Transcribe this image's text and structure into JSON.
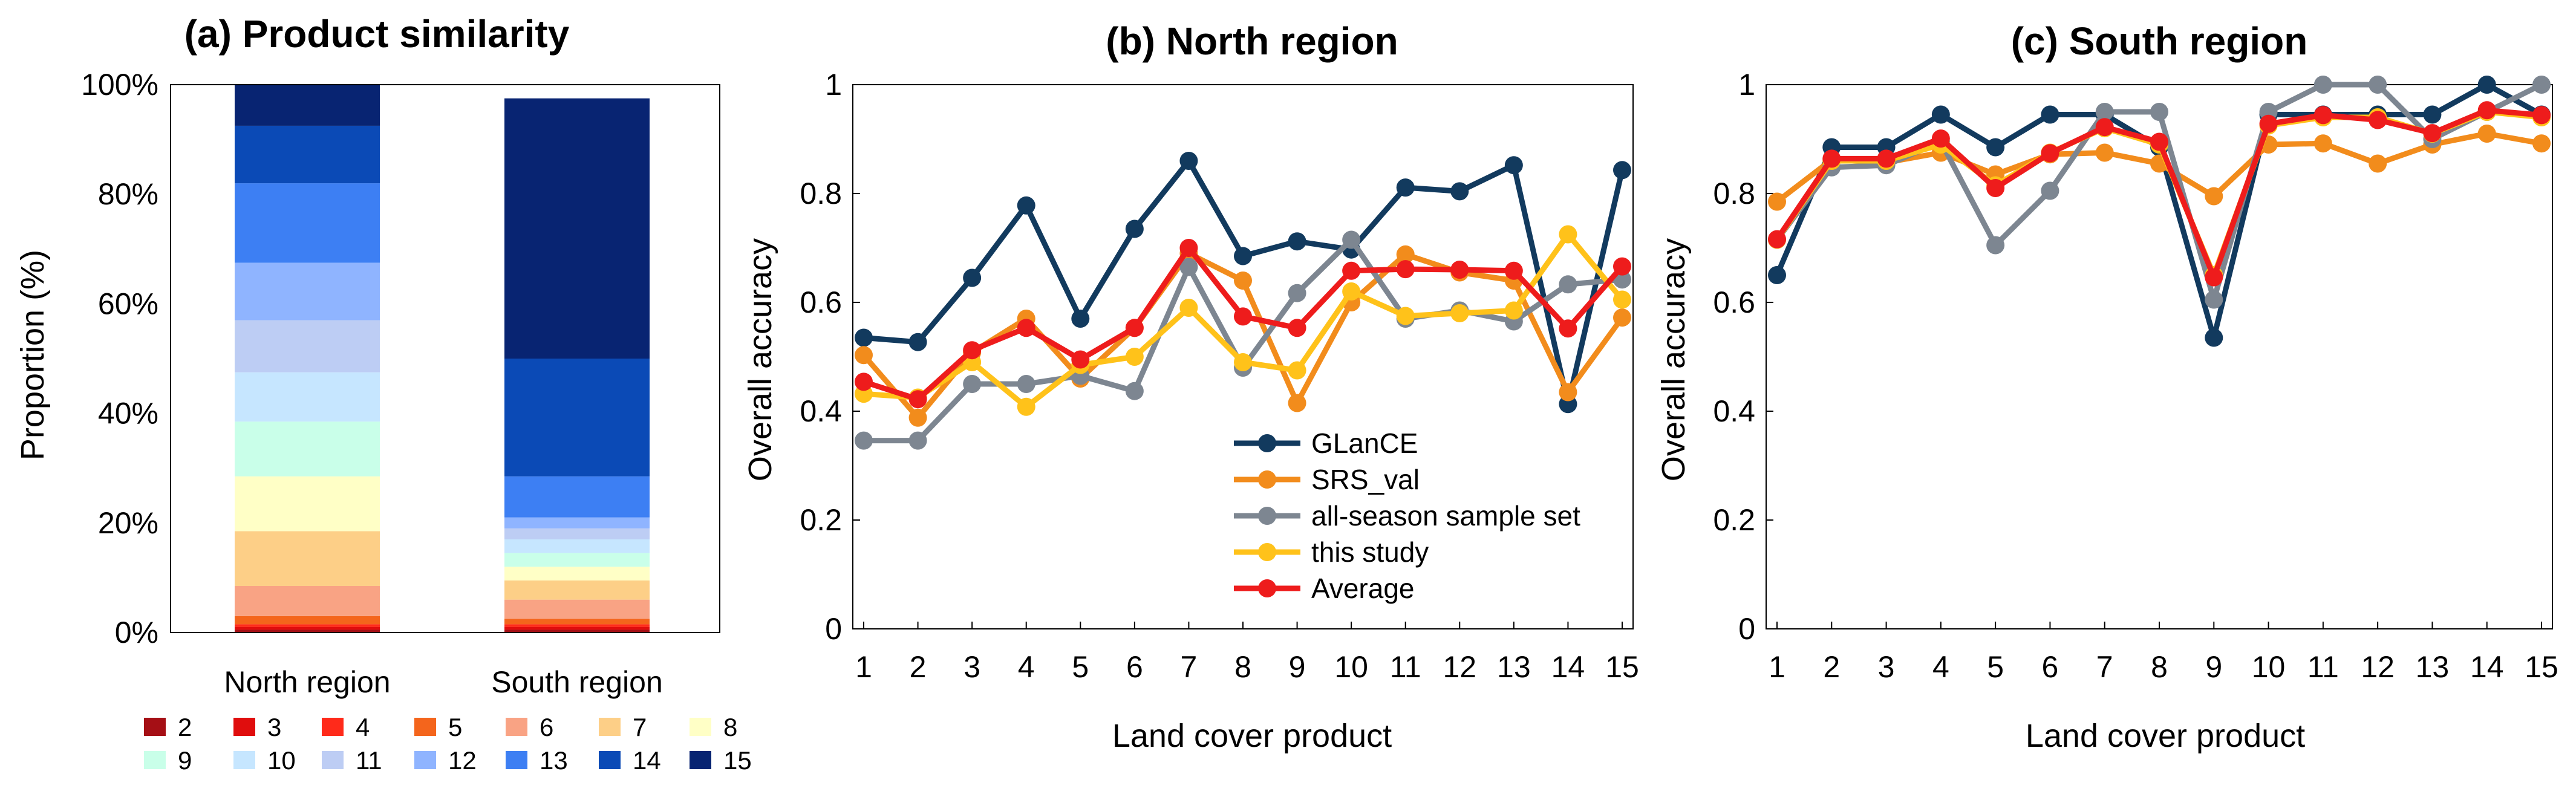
{
  "panels": {
    "a": {
      "title": "(a) Product similarity",
      "ylabel": "Proportion (%)",
      "yticks": [
        "0%",
        "20%",
        "40%",
        "60%",
        "80%",
        "100%"
      ],
      "categories": [
        "North region",
        "South region"
      ],
      "classes": [
        "2",
        "3",
        "4",
        "5",
        "6",
        "7",
        "8",
        "9",
        "10",
        "11",
        "12",
        "13",
        "14",
        "15"
      ],
      "class_colors": [
        "#a50f15",
        "#e00d0d",
        "#ff2a1a",
        "#f4651c",
        "#f9a384",
        "#fdcf87",
        "#ffffc6",
        "#c9ffe9",
        "#c6e6ff",
        "#bdcdf4",
        "#8fb4ff",
        "#3d7ff3",
        "#0b4ab6",
        "#082472"
      ]
    },
    "b": {
      "title": "(b) North region",
      "xlabel": "Land cover product",
      "ylabel": "Overall accuracy"
    },
    "c": {
      "title": "(c) South region",
      "xlabel": "Land cover product",
      "ylabel": "Overall accuracy"
    },
    "legend": {
      "entries": [
        "GLanCE",
        "SRS_val",
        "all-season sample set",
        "this study",
        "Average"
      ],
      "colors": [
        "#123a5e",
        "#f28c1c",
        "#7d8691",
        "#ffc21a",
        "#ee1c1c"
      ]
    }
  },
  "chart_data": [
    {
      "type": "bar",
      "stacked": true,
      "title": "(a) Product similarity",
      "xlabel": "",
      "ylabel": "Proportion (%)",
      "ylim": [
        0,
        100
      ],
      "categories": [
        "North region",
        "South region"
      ],
      "series": [
        {
          "name": "2",
          "values": [
            0.5,
            0.5
          ]
        },
        {
          "name": "3",
          "values": [
            0.5,
            0.5
          ]
        },
        {
          "name": "4",
          "values": [
            0.5,
            0.5
          ]
        },
        {
          "name": "5",
          "values": [
            1.5,
            1.0
          ]
        },
        {
          "name": "6",
          "values": [
            5.5,
            3.5
          ]
        },
        {
          "name": "7",
          "values": [
            10.0,
            3.5
          ]
        },
        {
          "name": "8",
          "values": [
            10.0,
            2.5
          ]
        },
        {
          "name": "9",
          "values": [
            10.0,
            2.5
          ]
        },
        {
          "name": "10",
          "values": [
            9.0,
            2.5
          ]
        },
        {
          "name": "11",
          "values": [
            9.5,
            2.0
          ]
        },
        {
          "name": "12",
          "values": [
            10.5,
            2.0
          ]
        },
        {
          "name": "13",
          "values": [
            14.5,
            7.5
          ]
        },
        {
          "name": "14",
          "values": [
            10.5,
            21.5
          ]
        },
        {
          "name": "15",
          "values": [
            7.5,
            47.5
          ]
        }
      ],
      "legend_position": "bottom"
    },
    {
      "type": "line",
      "title": "(b) North region",
      "xlabel": "Land cover product",
      "ylabel": "Overall accuracy",
      "ylim": [
        0,
        1
      ],
      "yticks": [
        "0",
        "0.2",
        "0.4",
        "0.6",
        "0.8",
        "1"
      ],
      "x": [
        1,
        2,
        3,
        4,
        5,
        6,
        7,
        8,
        9,
        10,
        11,
        12,
        13,
        14,
        15
      ],
      "series": [
        {
          "name": "GLanCE",
          "values": [
            0.535,
            0.527,
            0.645,
            0.778,
            0.57,
            0.735,
            0.86,
            0.685,
            0.712,
            0.697,
            0.811,
            0.804,
            0.852,
            0.413,
            0.843
          ]
        },
        {
          "name": "SRS_val",
          "values": [
            0.503,
            0.388,
            0.508,
            0.57,
            0.46,
            0.553,
            0.69,
            0.64,
            0.415,
            0.6,
            0.688,
            0.655,
            0.64,
            0.435,
            0.572
          ]
        },
        {
          "name": "all-season sample set",
          "values": [
            0.346,
            0.346,
            0.45,
            0.45,
            0.465,
            0.437,
            0.665,
            0.48,
            0.617,
            0.715,
            0.57,
            0.585,
            0.565,
            0.633,
            0.642
          ]
        },
        {
          "name": "this study",
          "values": [
            0.432,
            0.425,
            0.49,
            0.408,
            0.485,
            0.5,
            0.59,
            0.49,
            0.475,
            0.62,
            0.575,
            0.58,
            0.585,
            0.725,
            0.605
          ]
        },
        {
          "name": "Average",
          "values": [
            0.454,
            0.422,
            0.512,
            0.553,
            0.495,
            0.553,
            0.7,
            0.574,
            0.553,
            0.658,
            0.661,
            0.66,
            0.658,
            0.552,
            0.666
          ]
        }
      ],
      "legend_position": "bottom-center"
    },
    {
      "type": "line",
      "title": "(c) South region",
      "xlabel": "Land cover product",
      "ylabel": "Overall accuracy",
      "ylim": [
        0,
        1
      ],
      "yticks": [
        "0",
        "0.2",
        "0.4",
        "0.6",
        "0.8",
        "1"
      ],
      "x": [
        1,
        2,
        3,
        4,
        5,
        6,
        7,
        8,
        9,
        10,
        11,
        12,
        13,
        14,
        15
      ],
      "series": [
        {
          "name": "GLanCE",
          "values": [
            0.65,
            0.885,
            0.885,
            0.945,
            0.885,
            0.945,
            0.945,
            0.885,
            0.535,
            0.945,
            0.945,
            0.945,
            0.945,
            1.0,
            0.945
          ]
        },
        {
          "name": "SRS_val",
          "values": [
            0.785,
            0.862,
            0.857,
            0.875,
            0.835,
            0.872,
            0.875,
            0.855,
            0.795,
            0.89,
            0.892,
            0.855,
            0.89,
            0.91,
            0.892
          ]
        },
        {
          "name": "all-season sample set",
          "values": [
            0.715,
            0.848,
            0.852,
            0.895,
            0.705,
            0.805,
            0.95,
            0.95,
            0.605,
            0.95,
            1.0,
            1.0,
            0.9,
            0.95,
            1.0
          ]
        },
        {
          "name": "this study",
          "values": [
            0.715,
            0.86,
            0.86,
            0.89,
            0.815,
            0.875,
            0.92,
            0.89,
            0.65,
            0.925,
            0.94,
            0.94,
            0.91,
            0.95,
            0.94
          ]
        },
        {
          "name": "Average",
          "values": [
            0.716,
            0.864,
            0.864,
            0.901,
            0.81,
            0.874,
            0.922,
            0.895,
            0.646,
            0.928,
            0.944,
            0.935,
            0.911,
            0.953,
            0.944
          ]
        }
      ]
    }
  ]
}
